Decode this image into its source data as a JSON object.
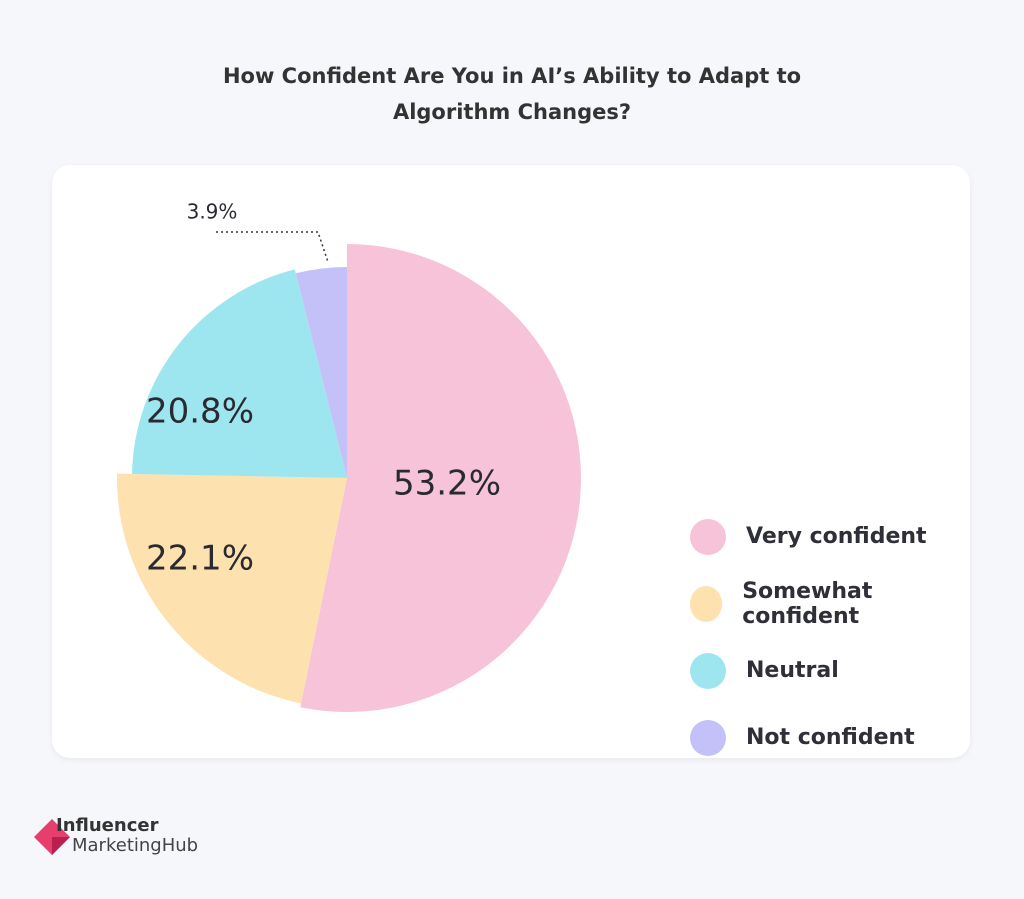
{
  "chart_data": {
    "type": "pie",
    "title": "How Confident Are You in AI’s Ability to Adapt to Algorithm Changes?",
    "title_lines": [
      "How Confident Are You in AI’s Ability to Adapt to",
      "Algorithm Changes?"
    ],
    "categories": [
      "Very confident",
      "Somewhat confident",
      "Neutral",
      "Not confident"
    ],
    "values": [
      53.2,
      22.1,
      20.8,
      3.9
    ],
    "labels": [
      "53.2%",
      "22.1%",
      "20.8%",
      "3.9%"
    ],
    "colors": [
      "#f6c3d8",
      "#fde2b0",
      "#9ee6ef",
      "#c4c0f8"
    ],
    "legend_position": "right"
  },
  "brand": {
    "line1": "Influencer",
    "line2": "MarketingHub",
    "accent": "#e63e6d"
  }
}
